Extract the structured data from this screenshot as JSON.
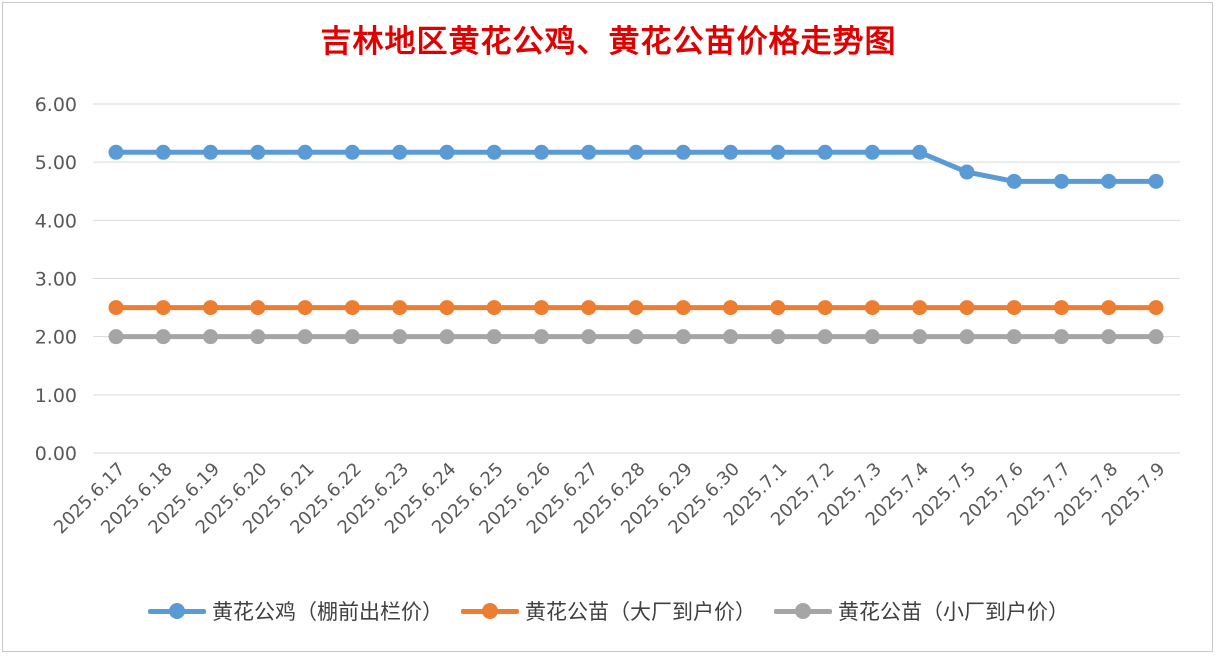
{
  "chart_data": {
    "type": "line",
    "title": "吉林地区黄花公鸡、黄花公苗价格走势图",
    "xlabel": "",
    "ylabel": "",
    "ylim": [
      0,
      6
    ],
    "ytick_step": 1,
    "ytick_labels": [
      "0.00",
      "1.00",
      "2.00",
      "3.00",
      "4.00",
      "5.00",
      "6.00"
    ],
    "grid": true,
    "legend_position": "bottom",
    "categories": [
      "2025.6.17",
      "2025.6.18",
      "2025.6.19",
      "2025.6.20",
      "2025.6.21",
      "2025.6.22",
      "2025.6.23",
      "2025.6.24",
      "2025.6.25",
      "2025.6.26",
      "2025.6.27",
      "2025.6.28",
      "2025.6.29",
      "2025.6.30",
      "2025.7.1",
      "2025.7.2",
      "2025.7.3",
      "2025.7.4",
      "2025.7.5",
      "2025.7.6",
      "2025.7.7",
      "2025.7.8",
      "2025.7.9"
    ],
    "series": [
      {
        "name": "黄花公鸡（棚前出栏价）",
        "color": "#5b9bd5",
        "values": [
          5.17,
          5.17,
          5.17,
          5.17,
          5.17,
          5.17,
          5.17,
          5.17,
          5.17,
          5.17,
          5.17,
          5.17,
          5.17,
          5.17,
          5.17,
          5.17,
          5.17,
          5.17,
          4.83,
          4.67,
          4.67,
          4.67,
          4.67
        ]
      },
      {
        "name": "黄花公苗（大厂到户价）",
        "color": "#ed7d31",
        "values": [
          2.5,
          2.5,
          2.5,
          2.5,
          2.5,
          2.5,
          2.5,
          2.5,
          2.5,
          2.5,
          2.5,
          2.5,
          2.5,
          2.5,
          2.5,
          2.5,
          2.5,
          2.5,
          2.5,
          2.5,
          2.5,
          2.5,
          2.5
        ]
      },
      {
        "name": "黄花公苗（小厂到户价）",
        "color": "#a5a5a5",
        "values": [
          2.0,
          2.0,
          2.0,
          2.0,
          2.0,
          2.0,
          2.0,
          2.0,
          2.0,
          2.0,
          2.0,
          2.0,
          2.0,
          2.0,
          2.0,
          2.0,
          2.0,
          2.0,
          2.0,
          2.0,
          2.0,
          2.0,
          2.0
        ]
      }
    ]
  }
}
